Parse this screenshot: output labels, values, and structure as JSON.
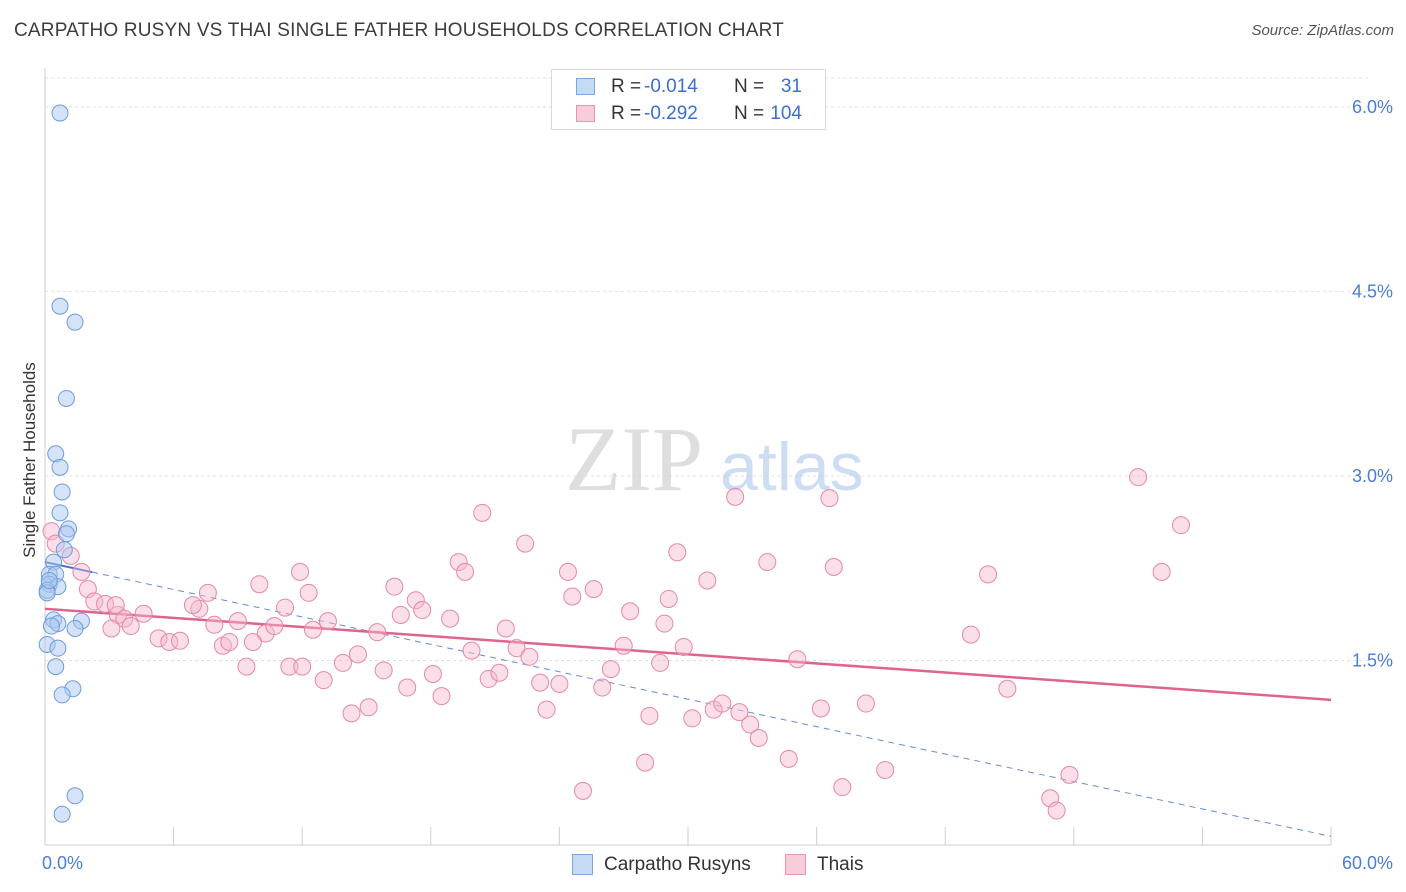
{
  "title": "CARPATHO RUSYN VS THAI SINGLE FATHER HOUSEHOLDS CORRELATION CHART",
  "source": "Source: ZipAtlas.com",
  "watermark": {
    "zip": "ZIP",
    "atlas": "atlas"
  },
  "colors": {
    "blue_fill": "#a9c8f0",
    "blue_stroke": "#6f9bde",
    "blue_line": "#3f6fd1",
    "pink_fill": "#f5b9cc",
    "pink_stroke": "#e688a7",
    "pink_line": "#e0638f",
    "axis_text": "#4a7dd4",
    "grid": "#e0e0e0"
  },
  "legend": {
    "rows": [
      {
        "r_label": "R =",
        "r_value": "-0.014",
        "n_label": "N =",
        "n_value": "31"
      },
      {
        "r_label": "R =",
        "r_value": "-0.292",
        "n_label": "N =",
        "n_value": "104"
      }
    ]
  },
  "bottom_legend": [
    "Carpatho Rusyns",
    "Thais"
  ],
  "chart_data": {
    "type": "scatter",
    "title": "CARPATHO RUSYN VS THAI SINGLE FATHER HOUSEHOLDS CORRELATION CHART",
    "xlabel": "",
    "ylabel": "Single Father Households",
    "xlim": [
      0,
      60
    ],
    "ylim": [
      0,
      6.3
    ],
    "x_tick_labels": [
      "0.0%",
      "60.0%"
    ],
    "y_ticks": [
      1.5,
      3.0,
      4.5,
      6.0
    ],
    "y_tick_labels": [
      "1.5%",
      "3.0%",
      "4.5%",
      "6.0%"
    ],
    "grid": true,
    "legend_position": "top-center",
    "series": [
      {
        "name": "Carpatho Rusyns",
        "color": "#a9c8f0",
        "r": -0.014,
        "n": 31,
        "trend": {
          "x": [
            0,
            60
          ],
          "y": [
            2.3,
            0.07
          ],
          "style": "solid-then-dashed"
        },
        "points": [
          [
            0.7,
            5.95
          ],
          [
            0.7,
            4.38
          ],
          [
            1.4,
            4.25
          ],
          [
            1.0,
            3.63
          ],
          [
            0.5,
            3.18
          ],
          [
            0.7,
            3.07
          ],
          [
            0.8,
            2.87
          ],
          [
            0.7,
            2.7
          ],
          [
            1.1,
            2.57
          ],
          [
            1.0,
            2.53
          ],
          [
            0.9,
            2.4
          ],
          [
            0.4,
            2.3
          ],
          [
            0.2,
            2.2
          ],
          [
            0.5,
            2.2
          ],
          [
            0.2,
            2.12
          ],
          [
            0.6,
            2.1
          ],
          [
            0.1,
            2.07
          ],
          [
            0.1,
            2.05
          ],
          [
            0.4,
            1.83
          ],
          [
            0.6,
            1.8
          ],
          [
            1.7,
            1.82
          ],
          [
            0.3,
            1.78
          ],
          [
            1.4,
            1.76
          ],
          [
            0.1,
            1.63
          ],
          [
            0.6,
            1.6
          ],
          [
            0.5,
            1.45
          ],
          [
            1.3,
            1.27
          ],
          [
            0.8,
            1.22
          ],
          [
            1.4,
            0.4
          ],
          [
            0.8,
            0.25
          ],
          [
            0.2,
            2.15
          ]
        ]
      },
      {
        "name": "Thais",
        "color": "#f5b9cc",
        "r": -0.292,
        "n": 104,
        "trend": {
          "x": [
            0,
            60
          ],
          "y": [
            1.92,
            1.18
          ],
          "style": "solid"
        },
        "points": [
          [
            0.3,
            2.55
          ],
          [
            0.5,
            2.45
          ],
          [
            1.2,
            2.35
          ],
          [
            1.7,
            2.22
          ],
          [
            2.0,
            2.08
          ],
          [
            2.3,
            1.98
          ],
          [
            2.8,
            1.96
          ],
          [
            3.4,
            1.87
          ],
          [
            3.7,
            1.84
          ],
          [
            3.1,
            1.76
          ],
          [
            4.0,
            1.78
          ],
          [
            3.3,
            1.95
          ],
          [
            4.6,
            1.88
          ],
          [
            5.3,
            1.68
          ],
          [
            5.8,
            1.65
          ],
          [
            6.3,
            1.66
          ],
          [
            7.2,
            1.92
          ],
          [
            7.6,
            2.05
          ],
          [
            6.9,
            1.95
          ],
          [
            8.3,
            1.62
          ],
          [
            7.9,
            1.79
          ],
          [
            8.6,
            1.65
          ],
          [
            9.0,
            1.82
          ],
          [
            9.4,
            1.45
          ],
          [
            10.0,
            2.12
          ],
          [
            10.3,
            1.72
          ],
          [
            10.7,
            1.78
          ],
          [
            11.2,
            1.93
          ],
          [
            11.4,
            1.45
          ],
          [
            11.9,
            2.22
          ],
          [
            12.0,
            1.45
          ],
          [
            12.3,
            2.05
          ],
          [
            12.5,
            1.75
          ],
          [
            13.0,
            1.34
          ],
          [
            13.2,
            1.82
          ],
          [
            13.9,
            1.48
          ],
          [
            14.3,
            1.07
          ],
          [
            14.6,
            1.55
          ],
          [
            15.1,
            1.12
          ],
          [
            15.5,
            1.73
          ],
          [
            15.8,
            1.42
          ],
          [
            16.3,
            2.1
          ],
          [
            16.6,
            1.87
          ],
          [
            16.9,
            1.28
          ],
          [
            17.3,
            1.99
          ],
          [
            17.6,
            1.91
          ],
          [
            18.1,
            1.39
          ],
          [
            18.5,
            1.21
          ],
          [
            18.9,
            1.84
          ],
          [
            19.3,
            2.3
          ],
          [
            19.6,
            2.22
          ],
          [
            19.9,
            1.58
          ],
          [
            20.4,
            2.7
          ],
          [
            20.7,
            1.35
          ],
          [
            21.2,
            1.4
          ],
          [
            21.5,
            1.76
          ],
          [
            22.0,
            1.6
          ],
          [
            22.4,
            2.45
          ],
          [
            22.6,
            1.53
          ],
          [
            23.1,
            1.32
          ],
          [
            23.4,
            1.1
          ],
          [
            24.0,
            1.31
          ],
          [
            24.4,
            2.22
          ],
          [
            24.6,
            2.02
          ],
          [
            25.1,
            0.44
          ],
          [
            25.6,
            2.08
          ],
          [
            26.0,
            1.28
          ],
          [
            26.4,
            1.43
          ],
          [
            27.0,
            1.62
          ],
          [
            27.3,
            1.9
          ],
          [
            28.0,
            0.67
          ],
          [
            28.2,
            1.05
          ],
          [
            28.7,
            1.48
          ],
          [
            29.1,
            2.0
          ],
          [
            29.5,
            2.38
          ],
          [
            29.8,
            1.61
          ],
          [
            30.2,
            1.03
          ],
          [
            30.9,
            2.15
          ],
          [
            31.2,
            1.1
          ],
          [
            31.6,
            1.15
          ],
          [
            32.2,
            2.83
          ],
          [
            32.4,
            1.08
          ],
          [
            32.9,
            0.98
          ],
          [
            33.3,
            0.87
          ],
          [
            33.7,
            2.3
          ],
          [
            34.7,
            0.7
          ],
          [
            35.1,
            1.51
          ],
          [
            36.2,
            1.11
          ],
          [
            36.6,
            2.82
          ],
          [
            36.8,
            2.26
          ],
          [
            37.2,
            0.47
          ],
          [
            38.3,
            1.15
          ],
          [
            39.2,
            0.61
          ],
          [
            43.2,
            1.71
          ],
          [
            44.0,
            2.2
          ],
          [
            44.9,
            1.27
          ],
          [
            46.9,
            0.38
          ],
          [
            47.2,
            0.28
          ],
          [
            47.8,
            0.57
          ],
          [
            51.0,
            2.99
          ],
          [
            52.1,
            2.22
          ],
          [
            53.0,
            2.6
          ],
          [
            28.9,
            1.8
          ],
          [
            9.7,
            1.65
          ]
        ]
      }
    ]
  }
}
